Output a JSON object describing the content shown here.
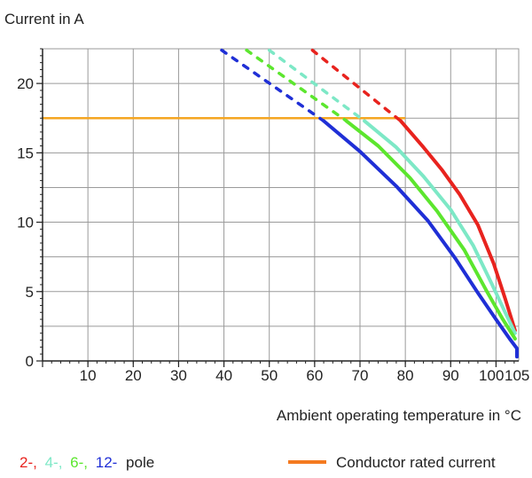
{
  "chart_data": {
    "type": "line",
    "ylabel": "Current in A",
    "xlabel": "Ambient operating temperature in °C",
    "xlim": [
      0,
      105
    ],
    "ylim": [
      0,
      22.5
    ],
    "xticks": [
      10,
      20,
      30,
      40,
      50,
      60,
      70,
      80,
      90,
      100,
      105
    ],
    "yticks": [
      0,
      5,
      10,
      15,
      20
    ],
    "grid": true,
    "legend": {
      "poles_prefix": [
        {
          "text": "2-,",
          "color": "#e8231e"
        },
        {
          "text": "4-,",
          "color": "#7de8c6"
        },
        {
          "text": "6-,",
          "color": "#5ce62e"
        },
        {
          "text": "12-",
          "color": "#1f2fd6"
        }
      ],
      "poles_suffix": "pole",
      "rated_label": "Conductor rated current",
      "rated_color": "#f5a623"
    },
    "rated_current": 17.5,
    "series": [
      {
        "id": "2-pole",
        "color": "#e8231e",
        "dashed": [
          [
            59.5,
            22.4
          ],
          [
            79,
            17.3
          ]
        ],
        "solid": [
          [
            79,
            17.3
          ],
          [
            84,
            15.4
          ],
          [
            88,
            13.8
          ],
          [
            92,
            12.0
          ],
          [
            96,
            9.8
          ],
          [
            99.5,
            7.0
          ],
          [
            102,
            4.5
          ],
          [
            104.2,
            2.2
          ]
        ]
      },
      {
        "id": "4-pole",
        "color": "#7de8c6",
        "dashed": [
          [
            50,
            22.4
          ],
          [
            71,
            17.3
          ]
        ],
        "solid": [
          [
            71,
            17.3
          ],
          [
            78,
            15.4
          ],
          [
            84,
            13.3
          ],
          [
            90,
            10.9
          ],
          [
            95,
            8.3
          ],
          [
            99,
            5.6
          ],
          [
            102,
            3.5
          ],
          [
            104.2,
            2.0
          ]
        ]
      },
      {
        "id": "6-pole",
        "color": "#5ce62e",
        "dashed": [
          [
            45,
            22.4
          ],
          [
            67,
            17.3
          ]
        ],
        "solid": [
          [
            67,
            17.3
          ],
          [
            74,
            15.5
          ],
          [
            81,
            13.2
          ],
          [
            87,
            10.8
          ],
          [
            93,
            8.0
          ],
          [
            98,
            5.0
          ],
          [
            101.5,
            3.0
          ],
          [
            104.2,
            1.6
          ]
        ]
      },
      {
        "id": "12-pole",
        "color": "#1f2fd6",
        "dashed": [
          [
            39.5,
            22.4
          ],
          [
            62,
            17.3
          ]
        ],
        "solid": [
          [
            62,
            17.3
          ],
          [
            70,
            15.1
          ],
          [
            78,
            12.6
          ],
          [
            85,
            10.1
          ],
          [
            91,
            7.4
          ],
          [
            96,
            4.9
          ],
          [
            100,
            3.0
          ],
          [
            103,
            1.6
          ],
          [
            104.6,
            0.9
          ],
          [
            104.6,
            0.3
          ]
        ]
      }
    ]
  }
}
